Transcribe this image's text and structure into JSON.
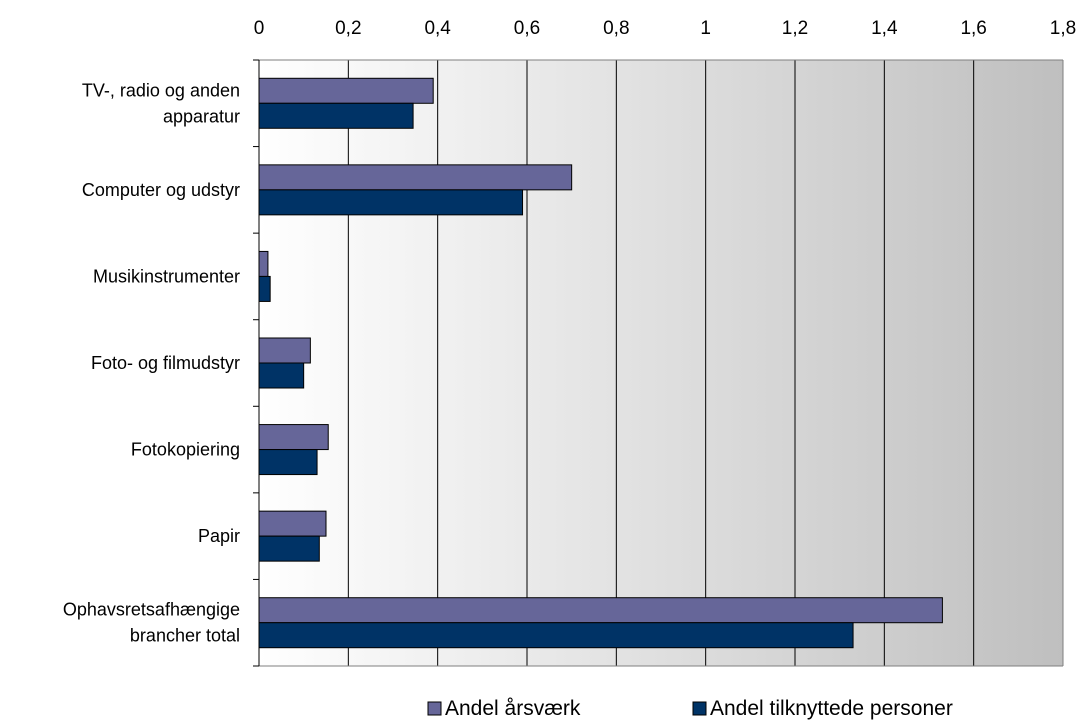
{
  "chart_data": {
    "type": "bar",
    "orientation": "horizontal",
    "x_axis_position": "top",
    "grid": true,
    "legend_position": "bottom",
    "xlim": [
      0,
      1.8
    ],
    "x_ticks": [
      "0",
      "0,2",
      "0,4",
      "0,6",
      "0,8",
      "1",
      "1,2",
      "1,4",
      "1,6",
      "1,8"
    ],
    "categories": [
      [
        "TV-, radio og anden",
        "apparatur"
      ],
      [
        "Computer og udstyr"
      ],
      [
        "Musikinstrumenter"
      ],
      [
        "Foto- og filmudstyr"
      ],
      [
        "Fotokopiering"
      ],
      [
        "Papir"
      ],
      [
        "Ophavsretsafhængige",
        "brancher total"
      ]
    ],
    "series": [
      {
        "name": "Andel årsværk",
        "color": "#666699",
        "values": [
          0.39,
          0.7,
          0.02,
          0.115,
          0.155,
          0.15,
          1.53
        ]
      },
      {
        "name": "Andel tilknyttede personer",
        "color": "#003366",
        "values": [
          0.345,
          0.59,
          0.025,
          0.1,
          0.13,
          0.135,
          1.33
        ]
      }
    ]
  }
}
